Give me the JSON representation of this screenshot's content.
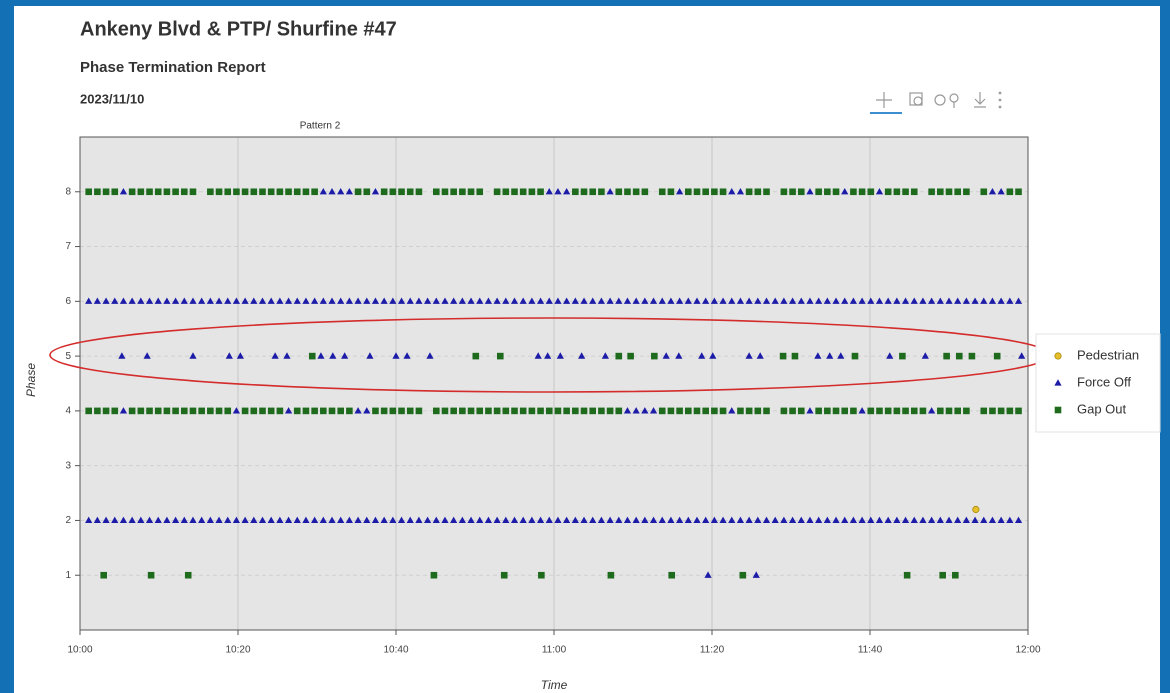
{
  "chart_data": {
    "type": "scatter",
    "title": "Ankeny Blvd & PTP/ Shurfine #47",
    "subtitle": "Phase Termination Report",
    "date": "2023/11/10",
    "annotation": "Pattern 2",
    "xlabel": "Time",
    "ylabel": "Phase",
    "xlim": [
      0,
      120
    ],
    "xticks": [
      {
        "value": 0,
        "label": "10:00"
      },
      {
        "value": 20,
        "label": "10:20"
      },
      {
        "value": 40,
        "label": "10:40"
      },
      {
        "value": 60,
        "label": "11:00"
      },
      {
        "value": 80,
        "label": "11:20"
      },
      {
        "value": 100,
        "label": "11:40"
      },
      {
        "value": 120,
        "label": "12:00"
      }
    ],
    "ylim": [
      0,
      9
    ],
    "yticks": [
      1,
      2,
      3,
      4,
      5,
      6,
      7,
      8
    ],
    "grid": true,
    "legend": "right",
    "series": [
      {
        "name": "Pedestrian",
        "color": "#e6c02a",
        "marker": "circle",
        "phases": [
          {
            "y": 2.2,
            "x": [
              113.4
            ]
          }
        ]
      },
      {
        "name": "Force Off",
        "color": "#1c1ca8",
        "marker": "triangle",
        "phases": [
          {
            "y": 8,
            "x": [
              5.5,
              30.8,
              31.9,
              33,
              34.1,
              37.4,
              59.4,
              60.5,
              61.6,
              67.1,
              75.9,
              82.5,
              83.6,
              92.4,
              96.8,
              101.2,
              115.5,
              116.6
            ]
          },
          {
            "y": 6,
            "x": [
              1.1,
              2.2,
              3.3,
              4.4,
              5.5,
              6.6,
              7.7,
              8.8,
              9.9,
              11,
              12.1,
              13.2,
              14.3,
              15.4,
              16.5,
              17.6,
              18.7,
              19.8,
              20.9,
              22,
              23.1,
              24.2,
              25.3,
              26.4,
              27.5,
              28.6,
              29.7,
              30.8,
              31.9,
              33,
              34.1,
              35.2,
              36.3,
              37.4,
              38.5,
              39.6,
              40.7,
              41.8,
              42.9,
              44,
              45.1,
              46.2,
              47.3,
              48.4,
              49.5,
              50.6,
              51.7,
              52.8,
              53.9,
              55,
              56.1,
              57.2,
              58.3,
              59.4,
              60.5,
              61.6,
              62.7,
              63.8,
              64.9,
              66,
              67.1,
              68.2,
              69.3,
              70.4,
              71.5,
              72.6,
              73.7,
              74.8,
              75.9,
              77,
              78.1,
              79.2,
              80.3,
              81.4,
              82.5,
              83.6,
              84.7,
              85.8,
              86.9,
              88,
              89.1,
              90.2,
              91.3,
              92.4,
              93.5,
              94.6,
              95.7,
              96.8,
              97.9,
              99,
              100.1,
              101.2,
              102.3,
              103.4,
              104.5,
              105.6,
              106.7,
              107.8,
              108.9,
              110,
              111.1,
              112.2,
              113.3,
              114.4,
              115.5,
              116.6,
              117.7,
              118.8
            ]
          },
          {
            "y": 5,
            "x": [
              5.3,
              8.5,
              14.3,
              18.9,
              20.3,
              24.7,
              26.2,
              30.5,
              32,
              33.5,
              36.7,
              40,
              41.4,
              44.3,
              58,
              59.2,
              60.8,
              63.5,
              66.5,
              74.2,
              75.8,
              78.7,
              80.1,
              84.7,
              86.1,
              93.4,
              94.9,
              96.3,
              102.5,
              107,
              119.2
            ]
          },
          {
            "y": 4,
            "x": [
              5.5,
              19.8,
              26.4,
              35.2,
              36.3,
              69.3,
              70.4,
              71.5,
              72.6,
              82.5,
              92.4,
              99,
              107.8
            ]
          },
          {
            "y": 2,
            "x": [
              1.1,
              2.2,
              3.3,
              4.4,
              5.5,
              6.6,
              7.7,
              8.8,
              9.9,
              11,
              12.1,
              13.2,
              14.3,
              15.4,
              16.5,
              17.6,
              18.7,
              19.8,
              20.9,
              22,
              23.1,
              24.2,
              25.3,
              26.4,
              27.5,
              28.6,
              29.7,
              30.8,
              31.9,
              33,
              34.1,
              35.2,
              36.3,
              37.4,
              38.5,
              39.6,
              40.7,
              41.8,
              42.9,
              44,
              45.1,
              46.2,
              47.3,
              48.4,
              49.5,
              50.6,
              51.7,
              52.8,
              53.9,
              55,
              56.1,
              57.2,
              58.3,
              59.4,
              60.5,
              61.6,
              62.7,
              63.8,
              64.9,
              66,
              67.1,
              68.2,
              69.3,
              70.4,
              71.5,
              72.6,
              73.7,
              74.8,
              75.9,
              77,
              78.1,
              79.2,
              80.3,
              81.4,
              82.5,
              83.6,
              84.7,
              85.8,
              86.9,
              88,
              89.1,
              90.2,
              91.3,
              92.4,
              93.5,
              94.6,
              95.7,
              96.8,
              97.9,
              99,
              100.1,
              101.2,
              102.3,
              103.4,
              104.5,
              105.6,
              106.7,
              107.8,
              108.9,
              110,
              111.1,
              112.2,
              113.3,
              114.4,
              115.5,
              116.6,
              117.7,
              118.8
            ]
          },
          {
            "y": 1,
            "x": [
              79.5,
              85.6
            ]
          }
        ]
      },
      {
        "name": "Gap Out",
        "color": "#1e6b1e",
        "marker": "square",
        "phases": [
          {
            "y": 8,
            "x": [
              1.1,
              2.2,
              3.3,
              4.4,
              6.6,
              7.7,
              8.8,
              9.9,
              11,
              12.1,
              13.2,
              14.3,
              16.5,
              17.6,
              18.7,
              19.8,
              20.9,
              22,
              23.1,
              24.2,
              25.3,
              26.4,
              27.5,
              28.6,
              29.7,
              35.2,
              36.3,
              38.5,
              39.6,
              40.7,
              41.8,
              42.9,
              45.1,
              46.2,
              47.3,
              48.4,
              49.5,
              50.6,
              52.8,
              53.9,
              55,
              56.1,
              57.2,
              58.3,
              62.7,
              63.8,
              64.9,
              66,
              68.2,
              69.3,
              70.4,
              71.5,
              73.7,
              74.8,
              77,
              78.1,
              79.2,
              80.3,
              81.4,
              84.7,
              85.8,
              86.9,
              89.1,
              90.2,
              91.3,
              93.5,
              94.6,
              95.7,
              97.9,
              99,
              100.1,
              102.3,
              103.4,
              104.5,
              105.6,
              107.8,
              108.9,
              110,
              111.1,
              112.2,
              114.4,
              117.7,
              118.8
            ]
          },
          {
            "y": 5,
            "x": [
              29.4,
              50.1,
              53.2,
              68.2,
              69.7,
              72.7,
              89,
              90.5,
              98.1,
              104.1,
              109.7,
              111.3,
              112.9,
              116.1
            ]
          },
          {
            "y": 4,
            "x": [
              1.1,
              2.2,
              3.3,
              4.4,
              6.6,
              7.7,
              8.8,
              9.9,
              11,
              12.1,
              13.2,
              14.3,
              15.4,
              16.5,
              17.6,
              18.7,
              20.9,
              22,
              23.1,
              24.2,
              25.3,
              27.5,
              28.6,
              29.7,
              30.8,
              31.9,
              33,
              34.1,
              37.4,
              38.5,
              39.6,
              40.7,
              41.8,
              42.9,
              45.1,
              46.2,
              47.3,
              48.4,
              49.5,
              50.6,
              51.7,
              52.8,
              53.9,
              55,
              56.1,
              57.2,
              58.3,
              59.4,
              60.5,
              61.6,
              62.7,
              63.8,
              64.9,
              66,
              67.1,
              68.2,
              73.7,
              74.8,
              75.9,
              77,
              78.1,
              79.2,
              80.3,
              81.4,
              83.6,
              84.7,
              85.8,
              86.9,
              89.1,
              90.2,
              91.3,
              93.5,
              94.6,
              95.7,
              96.8,
              97.9,
              100.1,
              101.2,
              102.3,
              103.4,
              104.5,
              105.6,
              106.7,
              108.9,
              110,
              111.1,
              112.2,
              114.4,
              115.5,
              116.6,
              117.7,
              118.8
            ]
          },
          {
            "y": 1,
            "x": [
              3,
              9,
              13.7,
              44.8,
              53.7,
              58.4,
              67.2,
              74.9,
              83.9,
              104.7,
              109.2,
              110.8
            ]
          }
        ]
      }
    ]
  }
}
